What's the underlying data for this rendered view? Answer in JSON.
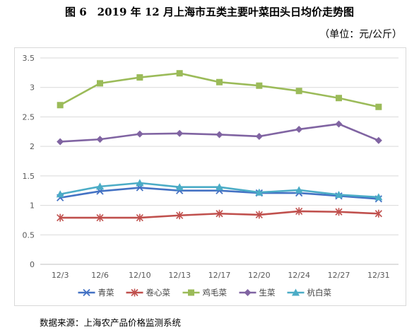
{
  "title": "图 6　2019 年 12 月上海市五类主要叶菜田头日均价走势图",
  "unit": "（单位：元/公斤）",
  "source": "数据来源：上海农产品价格监测系统",
  "chart_data": {
    "type": "line",
    "categories": [
      "12/3",
      "12/6",
      "12/10",
      "12/13",
      "12/17",
      "12/20",
      "12/24",
      "12/27",
      "12/31"
    ],
    "ylim": [
      0,
      3.5
    ],
    "yticks": [
      "0",
      "0.5",
      "1",
      "1.5",
      "2",
      "2.5",
      "3",
      "3.5"
    ],
    "grid": true,
    "legend_position": "bottom",
    "series": [
      {
        "name": "青菜",
        "color": "#4472c4",
        "marker": "x",
        "values": [
          1.13,
          1.24,
          1.3,
          1.25,
          1.25,
          1.21,
          1.21,
          1.16,
          1.11
        ]
      },
      {
        "name": "卷心菜",
        "color": "#c0504d",
        "marker": "asterisk",
        "values": [
          0.79,
          0.79,
          0.79,
          0.83,
          0.86,
          0.84,
          0.9,
          0.89,
          0.86
        ]
      },
      {
        "name": "鸡毛菜",
        "color": "#9bbb59",
        "marker": "square",
        "values": [
          2.7,
          3.07,
          3.17,
          3.24,
          3.09,
          3.03,
          2.94,
          2.82,
          2.67
        ]
      },
      {
        "name": "生菜",
        "color": "#8064a2",
        "marker": "diamond",
        "values": [
          2.08,
          2.12,
          2.21,
          2.22,
          2.2,
          2.17,
          2.29,
          2.38,
          2.1
        ]
      },
      {
        "name": "杭白菜",
        "color": "#4bacc6",
        "marker": "triangle",
        "values": [
          1.19,
          1.32,
          1.38,
          1.31,
          1.31,
          1.22,
          1.26,
          1.18,
          1.14
        ]
      }
    ]
  }
}
